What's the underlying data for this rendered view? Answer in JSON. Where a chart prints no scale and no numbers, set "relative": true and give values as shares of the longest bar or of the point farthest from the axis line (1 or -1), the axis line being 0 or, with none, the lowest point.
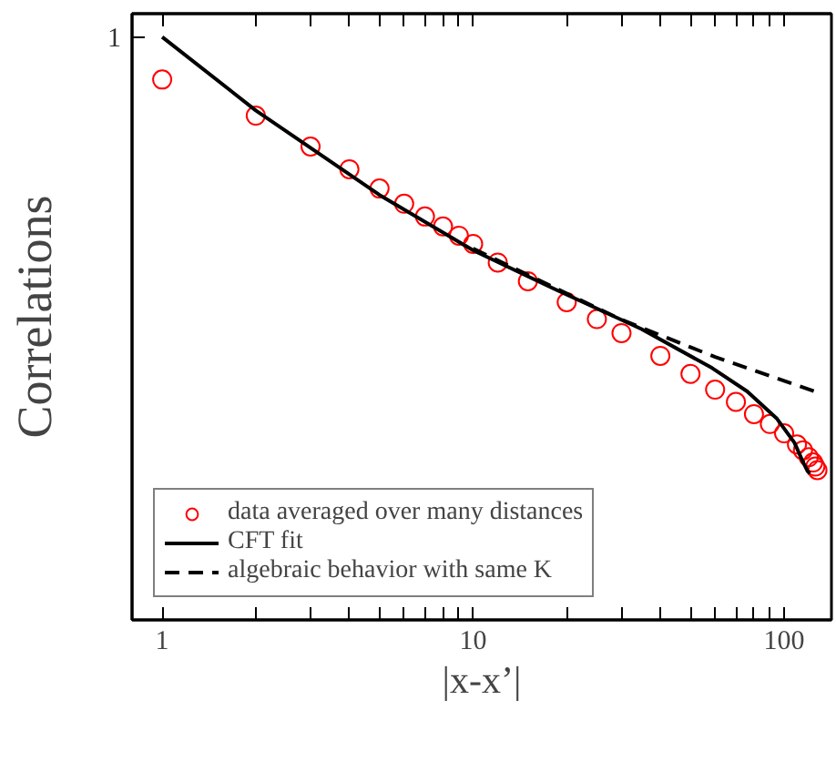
{
  "chart_data": {
    "type": "scatter",
    "xlabel": "|x-x’|",
    "ylabel": "Correlations",
    "log": "x",
    "relative": true,
    "annotations": [
      "1"
    ],
    "xlim": [
      0.8,
      142
    ],
    "xticks": [
      1,
      {
        "value": 2,
        "label": null
      },
      {
        "value": 3,
        "label": null
      },
      {
        "value": 4,
        "label": null
      },
      {
        "value": 5,
        "label": null
      },
      {
        "value": 6,
        "label": null
      },
      {
        "value": 7,
        "label": null
      },
      {
        "value": 8,
        "label": null
      },
      {
        "value": 9,
        "label": null
      },
      10,
      {
        "value": 20,
        "label": null
      },
      {
        "value": 30,
        "label": null
      },
      {
        "value": 40,
        "label": null
      },
      {
        "value": 50,
        "label": null
      },
      {
        "value": 60,
        "label": null
      },
      {
        "value": 70,
        "label": null
      },
      {
        "value": 80,
        "label": null
      },
      {
        "value": 90,
        "label": null
      },
      100
    ],
    "legend": "bottom left",
    "series": [
      {
        "name": "data averaged over many distances",
        "marker": "circle",
        "color": "#ff0000",
        "x": [
          1,
          2,
          3,
          4,
          5,
          6,
          7,
          8,
          9,
          10,
          12,
          15,
          20,
          25,
          30,
          40,
          50,
          60,
          70,
          80,
          90,
          100,
          110,
          115,
          120,
          124,
          126,
          128
        ],
        "values": [
          0.927,
          0.865,
          0.812,
          0.773,
          0.74,
          0.714,
          0.692,
          0.675,
          0.659,
          0.645,
          0.613,
          0.581,
          0.545,
          0.516,
          0.492,
          0.453,
          0.422,
          0.395,
          0.374,
          0.353,
          0.336,
          0.32,
          0.301,
          0.291,
          0.279,
          0.27,
          0.263,
          0.257
        ]
      },
      {
        "name": "CFT fit",
        "type": "line",
        "line_style": "solid",
        "color": "#000000",
        "x": [
          1,
          2,
          5,
          10,
          18.2,
          34.8,
          58.7,
          76.1,
          94.9,
          108,
          115,
          119,
          121
        ],
        "values": [
          1,
          0.874,
          0.729,
          0.634,
          0.568,
          0.499,
          0.432,
          0.392,
          0.345,
          0.304,
          0.271,
          0.255,
          0.251
        ]
      },
      {
        "name": "algebraic behavior with same K",
        "type": "line",
        "line_style": "dashed",
        "color": "#000000",
        "x": [
          10,
          30,
          60,
          100,
          130
        ],
        "values": [
          0.637,
          0.515,
          0.451,
          0.41,
          0.389
        ]
      }
    ]
  }
}
